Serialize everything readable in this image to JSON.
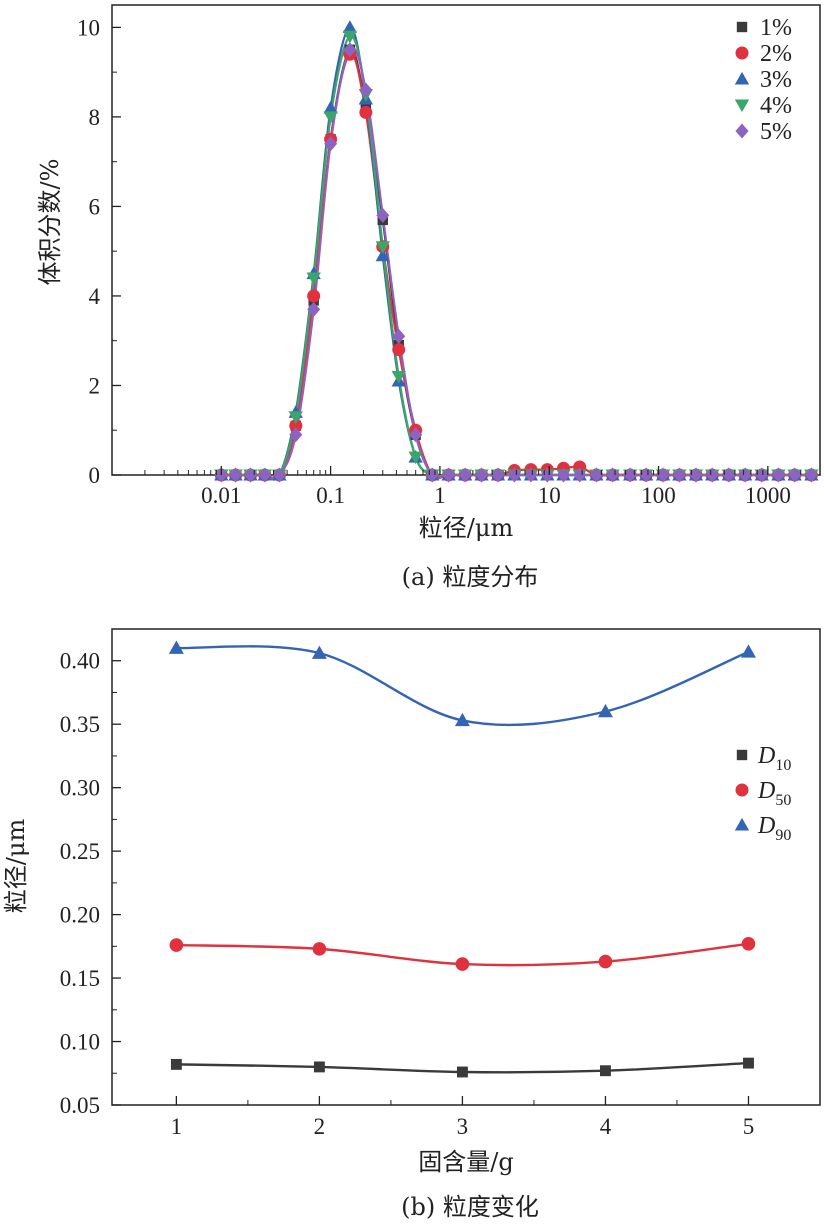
{
  "chart_data": [
    {
      "type": "line",
      "caption": "(a) 粒度分布",
      "xlabel": "粒径/μm",
      "ylabel": "体积分数/%",
      "xscale": "log",
      "xlim": [
        0.001,
        3000
      ],
      "ylim": [
        0,
        10.5
      ],
      "x_ticks": [
        0.01,
        0.1,
        1,
        10,
        100,
        1000
      ],
      "x_tick_labels": [
        "0.01",
        "0.1",
        "1",
        "10",
        "100",
        "1000"
      ],
      "y_ticks": [
        0,
        2,
        4,
        6,
        8,
        10
      ],
      "y_tick_labels": [
        "0",
        "2",
        "4",
        "6",
        "8",
        "10"
      ],
      "legend_position": "top-right",
      "x": [
        0.01,
        0.0135,
        0.0185,
        0.025,
        0.034,
        0.048,
        0.07,
        0.1,
        0.15,
        0.21,
        0.3,
        0.42,
        0.6,
        0.85,
        1.2,
        1.7,
        2.4,
        3.4,
        4.8,
        6.8,
        9.6,
        13.5,
        19,
        27,
        38,
        55,
        77,
        110,
        155,
        220,
        310,
        440,
        620,
        880,
        1250,
        1760,
        2500
      ],
      "series": [
        {
          "name": "1%",
          "color": "#3a3a3a",
          "marker": "square",
          "values": [
            0,
            0,
            0,
            0,
            0,
            1.1,
            3.9,
            7.5,
            9.5,
            8.2,
            5.7,
            2.9,
            0.9,
            0,
            0,
            0,
            0,
            0,
            0,
            0,
            0,
            0,
            0,
            0,
            0,
            0,
            0,
            0,
            0,
            0,
            0,
            0,
            0,
            0,
            0,
            0,
            0
          ]
        },
        {
          "name": "2%",
          "color": "#e0313f",
          "marker": "circle",
          "values": [
            0,
            0,
            0,
            0,
            0,
            1.1,
            4.0,
            7.5,
            9.4,
            8.1,
            5.1,
            2.8,
            1.0,
            0,
            0,
            0,
            0,
            0,
            0.1,
            0.12,
            0.12,
            0.15,
            0.18,
            0,
            0,
            0,
            0,
            0,
            0,
            0,
            0,
            0,
            0,
            0,
            0,
            0,
            0
          ]
        },
        {
          "name": "3%",
          "color": "#3464b4",
          "marker": "triangle",
          "values": [
            0,
            0,
            0,
            0,
            0,
            1.4,
            4.5,
            8.2,
            10.0,
            8.4,
            4.9,
            2.1,
            0.4,
            0,
            0,
            0,
            0,
            0,
            0,
            0,
            0,
            0,
            0,
            0,
            0,
            0,
            0,
            0,
            0,
            0,
            0,
            0,
            0,
            0,
            0,
            0,
            0
          ]
        },
        {
          "name": "4%",
          "color": "#3aa66a",
          "marker": "triangle-down",
          "values": [
            0,
            0,
            0,
            0,
            0,
            1.3,
            4.4,
            8.0,
            9.8,
            8.5,
            5.1,
            2.2,
            0.4,
            0,
            0,
            0,
            0,
            0,
            0,
            0,
            0,
            0,
            0,
            0,
            0,
            0,
            0,
            0,
            0,
            0,
            0,
            0,
            0,
            0,
            0,
            0,
            0
          ]
        },
        {
          "name": "5%",
          "color": "#8e62c0",
          "marker": "diamond",
          "values": [
            0,
            0,
            0,
            0,
            0,
            0.9,
            3.7,
            7.4,
            9.5,
            8.6,
            5.8,
            3.1,
            0.9,
            0,
            0,
            0,
            0,
            0,
            0,
            0,
            0,
            0,
            0,
            0,
            0,
            0,
            0,
            0,
            0,
            0,
            0,
            0,
            0,
            0,
            0,
            0,
            0
          ]
        }
      ]
    },
    {
      "type": "line",
      "caption": "(b) 粒度变化",
      "xlabel": "固含量/g",
      "ylabel": "粒径/μm",
      "xlim": [
        0.55,
        5.5
      ],
      "ylim": [
        0.05,
        0.425
      ],
      "x_ticks": [
        1,
        2,
        3,
        4,
        5
      ],
      "x_tick_labels": [
        "1",
        "2",
        "3",
        "4",
        "5"
      ],
      "y_ticks": [
        0.05,
        0.1,
        0.15,
        0.2,
        0.25,
        0.3,
        0.35,
        0.4
      ],
      "y_tick_labels": [
        "0.05",
        "0.10",
        "0.15",
        "0.20",
        "0.25",
        "0.30",
        "0.35",
        "0.40"
      ],
      "legend_position": "right",
      "x": [
        1,
        2,
        3,
        4,
        5
      ],
      "series": [
        {
          "name": "D",
          "subscript": "10",
          "color": "#3a3a3a",
          "marker": "square",
          "values": [
            0.082,
            0.08,
            0.076,
            0.077,
            0.083
          ]
        },
        {
          "name": "D",
          "subscript": "50",
          "color": "#e0313f",
          "marker": "circle",
          "values": [
            0.176,
            0.173,
            0.161,
            0.163,
            0.177
          ]
        },
        {
          "name": "D",
          "subscript": "90",
          "color": "#3464b4",
          "marker": "triangle",
          "values": [
            0.41,
            0.406,
            0.353,
            0.36,
            0.407
          ]
        }
      ]
    }
  ]
}
